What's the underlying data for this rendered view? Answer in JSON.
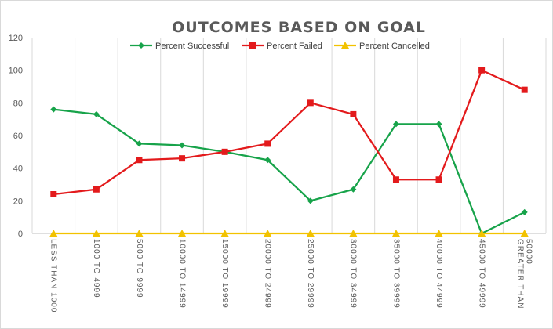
{
  "chart_data": {
    "type": "line",
    "title": "OUTCOMES BASED ON GOAL",
    "xlabel": "",
    "ylabel": "",
    "ylim": [
      0,
      120
    ],
    "yticks": [
      0,
      20,
      40,
      60,
      80,
      100,
      120
    ],
    "grid": "vertical",
    "legend_position": "top",
    "categories": [
      "LESS THAN 1000",
      "1000 TO 4999",
      "5000 TO 9999",
      "10000 TO 14999",
      "15000 TO 19999",
      "20000 TO 24999",
      "25000 TO 29999",
      "30000 TO 34999",
      "35000 TO 39999",
      "40000 TO 44999",
      "45000 TO 49999",
      "GREATER THAN 50000"
    ],
    "series": [
      {
        "name": "Percent Successful",
        "color": "#17a34a",
        "marker": "diamond",
        "values": [
          76,
          73,
          55,
          54,
          50,
          45,
          20,
          27,
          67,
          67,
          0,
          13
        ]
      },
      {
        "name": "Percent Failed",
        "color": "#e31a1c",
        "marker": "square",
        "values": [
          24,
          27,
          45,
          46,
          50,
          55,
          80,
          73,
          33,
          33,
          100,
          88
        ]
      },
      {
        "name": "Percent Cancelled",
        "color": "#f2c200",
        "marker": "triangle",
        "values": [
          0,
          0,
          0,
          0,
          0,
          0,
          0,
          0,
          0,
          0,
          0,
          0
        ]
      }
    ]
  }
}
